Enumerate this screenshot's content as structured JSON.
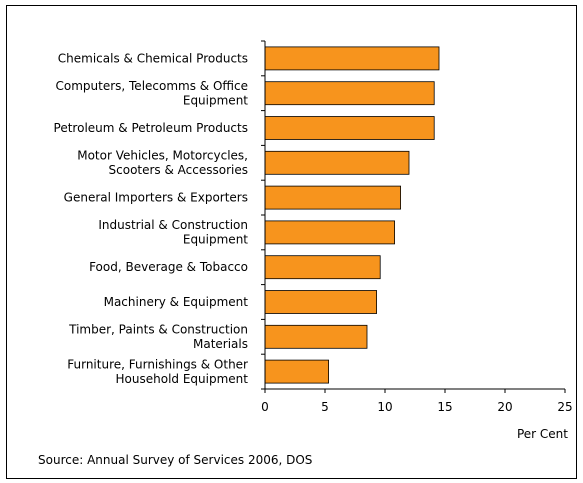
{
  "chart_data": {
    "type": "bar",
    "orientation": "horizontal",
    "categories": [
      [
        "Chemicals & Chemical Products"
      ],
      [
        "Computers, Telecomms & Office",
        "Equipment"
      ],
      [
        "Petroleum & Petroleum Products"
      ],
      [
        "Motor Vehicles, Motorcycles,",
        "Scooters & Accessories"
      ],
      [
        "General Importers & Exporters"
      ],
      [
        "Industrial & Construction",
        "Equipment"
      ],
      [
        "Food, Beverage & Tobacco"
      ],
      [
        "Machinery & Equipment"
      ],
      [
        "Timber, Paints & Construction",
        "Materials"
      ],
      [
        "Furniture, Furnishings & Other",
        "Household Equipment"
      ]
    ],
    "values": [
      14.5,
      14.1,
      14.1,
      12.0,
      11.3,
      10.8,
      9.6,
      9.3,
      8.5,
      5.3
    ],
    "xlabel": "Per Cent",
    "xlim": [
      0,
      25
    ],
    "xticks": [
      0,
      5,
      10,
      15,
      20,
      25
    ],
    "grid": false,
    "bar_color": "#F7941D",
    "bar_edge_color": "#000000"
  },
  "source_note": "Source: Annual Survey of Services 2006, DOS"
}
